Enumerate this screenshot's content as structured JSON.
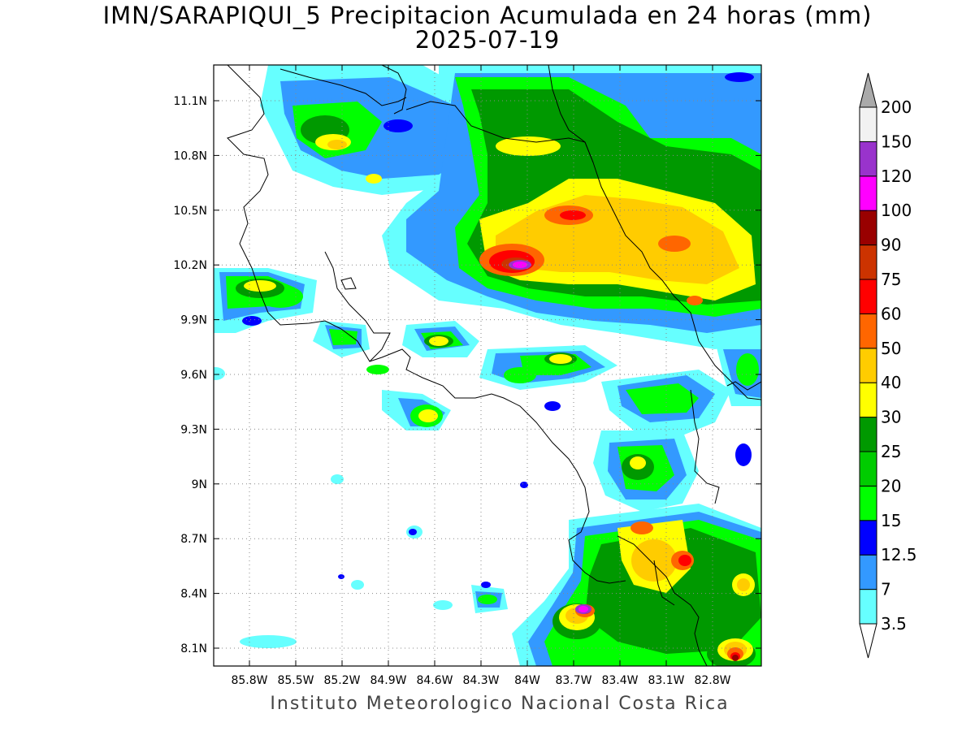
{
  "title": "IMN/SARAPIQUI_5 Precipitacion Acumulada en 24 horas (mm)",
  "date": "2025-07-19",
  "footer": "Instituto Meteorologico Nacional Costa Rica",
  "lat_labels": [
    "11.1N",
    "10.8N",
    "10.5N",
    "10.2N",
    "9.9N",
    "9.6N",
    "9.3N",
    "9N",
    "8.7N",
    "8.4N",
    "8.1N"
  ],
  "lon_labels": [
    "85.8W",
    "85.5W",
    "85.2W",
    "84.9W",
    "84.6W",
    "84.3W",
    "84W",
    "83.7W",
    "83.4W",
    "83.1W",
    "82.8W"
  ],
  "colorbar": {
    "levels": [
      "3.5",
      "7",
      "12.5",
      "15",
      "20",
      "25",
      "30",
      "40",
      "50",
      "60",
      "75",
      "90",
      "100",
      "120",
      "150",
      "200"
    ],
    "colors": [
      "#66ffff",
      "#3399ff",
      "#0000ff",
      "#00ff00",
      "#00cc00",
      "#009900",
      "#ffff00",
      "#ffcc00",
      "#ff6600",
      "#ff0000",
      "#cc3300",
      "#990000",
      "#ff00ff",
      "#9933cc",
      "#f2f2f2"
    ],
    "under_color": "#ffffff",
    "over_color": "#aaaaaa"
  }
}
